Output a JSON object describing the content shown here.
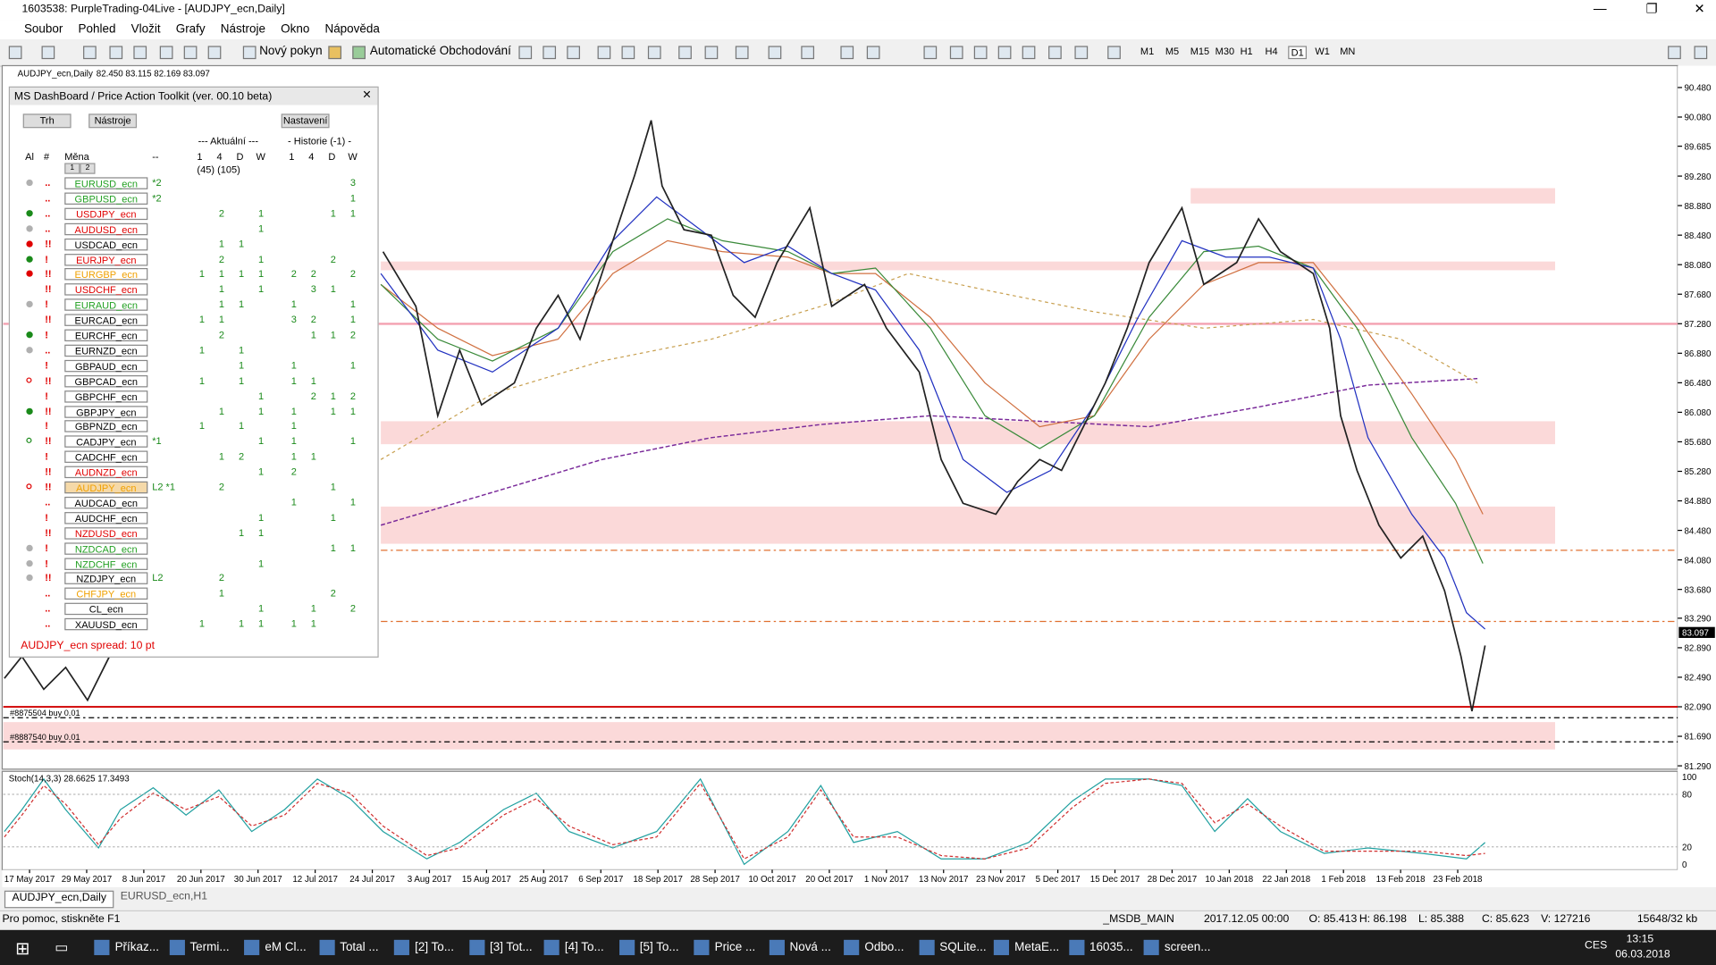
{
  "window": {
    "title": "1603538: PurpleTrading-04Live - [AUDJPY_ecn,Daily]"
  },
  "menu": [
    "Soubor",
    "Pohled",
    "Vložit",
    "Grafy",
    "Nástroje",
    "Okno",
    "Nápověda"
  ],
  "toolbar": {
    "new_order": "Nový pokyn",
    "auto_trading": "Automatické Obchodování",
    "timeframes": [
      "M1",
      "M5",
      "M15",
      "M30",
      "H1",
      "H4",
      "D1",
      "W1",
      "MN"
    ],
    "active_timeframe": "D1"
  },
  "chart": {
    "symbol": "AUDJPY_ecn,Daily",
    "ohlc": "82.450 83.115 82.169 83.097",
    "price_labels": [
      "90.480",
      "90.080",
      "89.685",
      "89.280",
      "88.880",
      "88.480",
      "88.080",
      "87.680",
      "87.280",
      "86.880",
      "86.480",
      "86.080",
      "85.680",
      "85.280",
      "84.880",
      "84.480",
      "84.080",
      "83.680",
      "83.290",
      "82.890",
      "82.490",
      "82.090",
      "81.690",
      "81.290"
    ],
    "current_price": "83.097",
    "dates": [
      "17 May 2017",
      "29 May 2017",
      "8 Jun 2017",
      "20 Jun 2017",
      "30 Jun 2017",
      "12 Jul 2017",
      "24 Jul 2017",
      "3 Aug 2017",
      "15 Aug 2017",
      "25 Aug 2017",
      "6 Sep 2017",
      "18 Sep 2017",
      "28 Sep 2017",
      "10 Oct 2017",
      "20 Oct 2017",
      "1 Nov 2017",
      "13 Nov 2017",
      "23 Nov 2017",
      "5 Dec 2017",
      "15 Dec 2017",
      "28 Dec 2017",
      "10 Jan 2018",
      "22 Jan 2018",
      "1 Feb 2018",
      "13 Feb 2018",
      "23 Feb 2018"
    ],
    "orders": [
      "#8875504 buy 0.01",
      "#8887540 buy 0.01"
    ],
    "stoch_label": "Stoch(14,3,3) 28.6625 17.3493",
    "stoch_levels": [
      "100",
      "80",
      "20",
      "0"
    ]
  },
  "dashboard": {
    "title": "MS DashBoard / Price Action Toolkit (ver. 00.10 beta)",
    "buttons": [
      "Trh",
      "Nástroje",
      "Nastavení"
    ],
    "group_current": "--- Aktuální ---",
    "group_history": "- Historie (-1) -",
    "col_al": "Al",
    "col_hash": "#",
    "col_currency": "Měna",
    "col_note": "--",
    "periods": [
      "1",
      "4",
      "D",
      "W"
    ],
    "counts": "(45) (105)",
    "sort_buttons": [
      "1",
      "2"
    ],
    "cell_color": "#1a8a1a",
    "rows": [
      {
        "symbol": "EURUSD_ecn",
        "color": "#22a022",
        "dot": "#b0b0b0",
        "flag": "..",
        "note": "*2",
        "cells": [
          null,
          null,
          null,
          null,
          null,
          null,
          null,
          3
        ]
      },
      {
        "symbol": "GBPUSD_ecn",
        "color": "#22a022",
        "flag": "..",
        "note": "*2",
        "cells": [
          null,
          null,
          null,
          null,
          null,
          null,
          null,
          1
        ]
      },
      {
        "symbol": "USDJPY_ecn",
        "color": "#e00000",
        "dot": "#1a8a1a",
        "flag": "..",
        "cells": [
          null,
          2,
          null,
          1,
          null,
          null,
          1,
          1
        ]
      },
      {
        "symbol": "AUDUSD_ecn",
        "color": "#e00000",
        "dot": "#b0b0b0",
        "flag": "..",
        "cells": [
          null,
          null,
          null,
          1,
          null,
          null,
          null,
          null
        ]
      },
      {
        "symbol": "USDCAD_ecn",
        "color": "#000000",
        "dot": "#e00000",
        "flag": "!!",
        "cells": [
          null,
          1,
          1,
          null,
          null,
          null,
          null,
          null
        ]
      },
      {
        "symbol": "EURJPY_ecn",
        "color": "#e00000",
        "dot": "#1a8a1a",
        "flag": "!",
        "cells": [
          null,
          2,
          null,
          1,
          null,
          null,
          2,
          null
        ]
      },
      {
        "symbol": "EURGBP_ecn",
        "color": "#f0a000",
        "dot": "#e00000",
        "flag": "!!",
        "cells": [
          1,
          1,
          1,
          1,
          2,
          2,
          null,
          2
        ]
      },
      {
        "symbol": "USDCHF_ecn",
        "color": "#e00000",
        "flag": "!!",
        "cells": [
          null,
          1,
          null,
          1,
          null,
          3,
          1,
          null
        ]
      },
      {
        "symbol": "EURAUD_ecn",
        "color": "#22a022",
        "dot": "#b0b0b0",
        "flag": "!",
        "cells": [
          null,
          1,
          1,
          null,
          1,
          null,
          null,
          1
        ]
      },
      {
        "symbol": "EURCAD_ecn",
        "color": "#000000",
        "flag": "!!",
        "cells": [
          1,
          1,
          null,
          null,
          3,
          2,
          null,
          1
        ]
      },
      {
        "symbol": "EURCHF_ecn",
        "color": "#000000",
        "dot": "#1a8a1a",
        "flag": "!",
        "cells": [
          null,
          2,
          null,
          null,
          null,
          1,
          1,
          2
        ]
      },
      {
        "symbol": "EURNZD_ecn",
        "color": "#000000",
        "dot": "#b0b0b0",
        "flag": "..",
        "cells": [
          1,
          null,
          1,
          null,
          null,
          null,
          null,
          null
        ]
      },
      {
        "symbol": "GBPAUD_ecn",
        "color": "#000000",
        "flag": "!",
        "cells": [
          null,
          null,
          1,
          null,
          1,
          null,
          null,
          1
        ]
      },
      {
        "symbol": "GBPCAD_ecn",
        "color": "#000000",
        "dot": "#e00000",
        "ring": true,
        "flag": "!!",
        "cells": [
          1,
          null,
          1,
          null,
          1,
          1,
          null,
          null
        ]
      },
      {
        "symbol": "GBPCHF_ecn",
        "color": "#000000",
        "flag": "!",
        "cells": [
          null,
          null,
          null,
          1,
          null,
          2,
          1,
          2
        ]
      },
      {
        "symbol": "GBPJPY_ecn",
        "color": "#000000",
        "dot": "#1a8a1a",
        "flag": "!!",
        "cells": [
          null,
          1,
          null,
          1,
          1,
          null,
          1,
          1
        ]
      },
      {
        "symbol": "GBPNZD_ecn",
        "color": "#000000",
        "flag": "!",
        "cells": [
          1,
          null,
          1,
          null,
          1,
          null,
          null,
          null
        ]
      },
      {
        "symbol": "CADJPY_ecn",
        "color": "#000000",
        "dot": "#1a8a1a",
        "ring": true,
        "flag": "!!",
        "note": "*1",
        "cells": [
          null,
          null,
          null,
          1,
          1,
          null,
          null,
          1
        ]
      },
      {
        "symbol": "CADCHF_ecn",
        "color": "#000000",
        "flag": "!",
        "cells": [
          null,
          1,
          2,
          null,
          1,
          1,
          null,
          null
        ]
      },
      {
        "symbol": "AUDNZD_ecn",
        "color": "#e00000",
        "flag": "!!",
        "cells": [
          null,
          null,
          null,
          1,
          2,
          null,
          null,
          null
        ]
      },
      {
        "symbol": "AUDJPY_ecn",
        "color": "#f0a000",
        "highlight": "#f5d9a8",
        "dot": "#e00000",
        "ring": true,
        "flag": "!!",
        "note": "L2 *1",
        "cells": [
          null,
          2,
          null,
          null,
          null,
          null,
          1,
          null
        ]
      },
      {
        "symbol": "AUDCAD_ecn",
        "color": "#000000",
        "flag": "..",
        "cells": [
          null,
          null,
          null,
          null,
          1,
          null,
          null,
          1
        ]
      },
      {
        "symbol": "AUDCHF_ecn",
        "color": "#000000",
        "flag": "!",
        "cells": [
          null,
          null,
          null,
          1,
          null,
          null,
          1,
          null
        ]
      },
      {
        "symbol": "NZDUSD_ecn",
        "color": "#e00000",
        "flag": "!!",
        "cells": [
          null,
          null,
          1,
          1,
          null,
          null,
          null,
          null
        ]
      },
      {
        "symbol": "NZDCAD_ecn",
        "color": "#22a022",
        "dot": "#b0b0b0",
        "flag": "!",
        "cells": [
          null,
          null,
          null,
          null,
          null,
          null,
          1,
          1
        ]
      },
      {
        "symbol": "NZDCHF_ecn",
        "color": "#22a022",
        "dot": "#b0b0b0",
        "flag": "!",
        "cells": [
          null,
          null,
          null,
          1,
          null,
          null,
          null,
          null
        ]
      },
      {
        "symbol": "NZDJPY_ecn",
        "color": "#000000",
        "dot": "#b0b0b0",
        "flag": "!!",
        "note": "L2",
        "cells": [
          null,
          2,
          null,
          null,
          null,
          null,
          null,
          null
        ]
      },
      {
        "symbol": "CHFJPY_ecn",
        "color": "#f0a000",
        "flag": "..",
        "cells": [
          null,
          1,
          null,
          null,
          null,
          null,
          2,
          null
        ]
      },
      {
        "symbol": "CL_ecn",
        "color": "#000000",
        "flag": "..",
        "cells": [
          null,
          null,
          null,
          1,
          null,
          1,
          null,
          2
        ]
      },
      {
        "symbol": "XAUUSD_ecn",
        "color": "#000000",
        "flag": "..",
        "cells": [
          1,
          null,
          1,
          1,
          1,
          1,
          null,
          null
        ]
      }
    ],
    "footer": "AUDJPY_ecn spread: 10 pt"
  },
  "tabs": [
    "AUDJPY_ecn,Daily",
    "EURUSD_ecn,H1"
  ],
  "status": [
    "Pro pomoc, stiskněte F1",
    "_MSDB_MAIN",
    "2017.12.05 00:00",
    "O: 85.413",
    "H: 86.198",
    "L: 85.388",
    "C: 85.623",
    "V: 127216",
    "15648/32 kb"
  ],
  "taskbar": {
    "items": [
      "Příkaz...",
      "Termi...",
      "eM Cl...",
      "Total ...",
      "[2] To...",
      "[3] Tot...",
      "[4] To...",
      "[5] To...",
      "Price ...",
      "Nová ...",
      "Odbo...",
      "SQLite...",
      "MetaE...",
      "16035...",
      "screen..."
    ],
    "lang": "CES",
    "time": "13:15",
    "date": "06.03.2018"
  }
}
